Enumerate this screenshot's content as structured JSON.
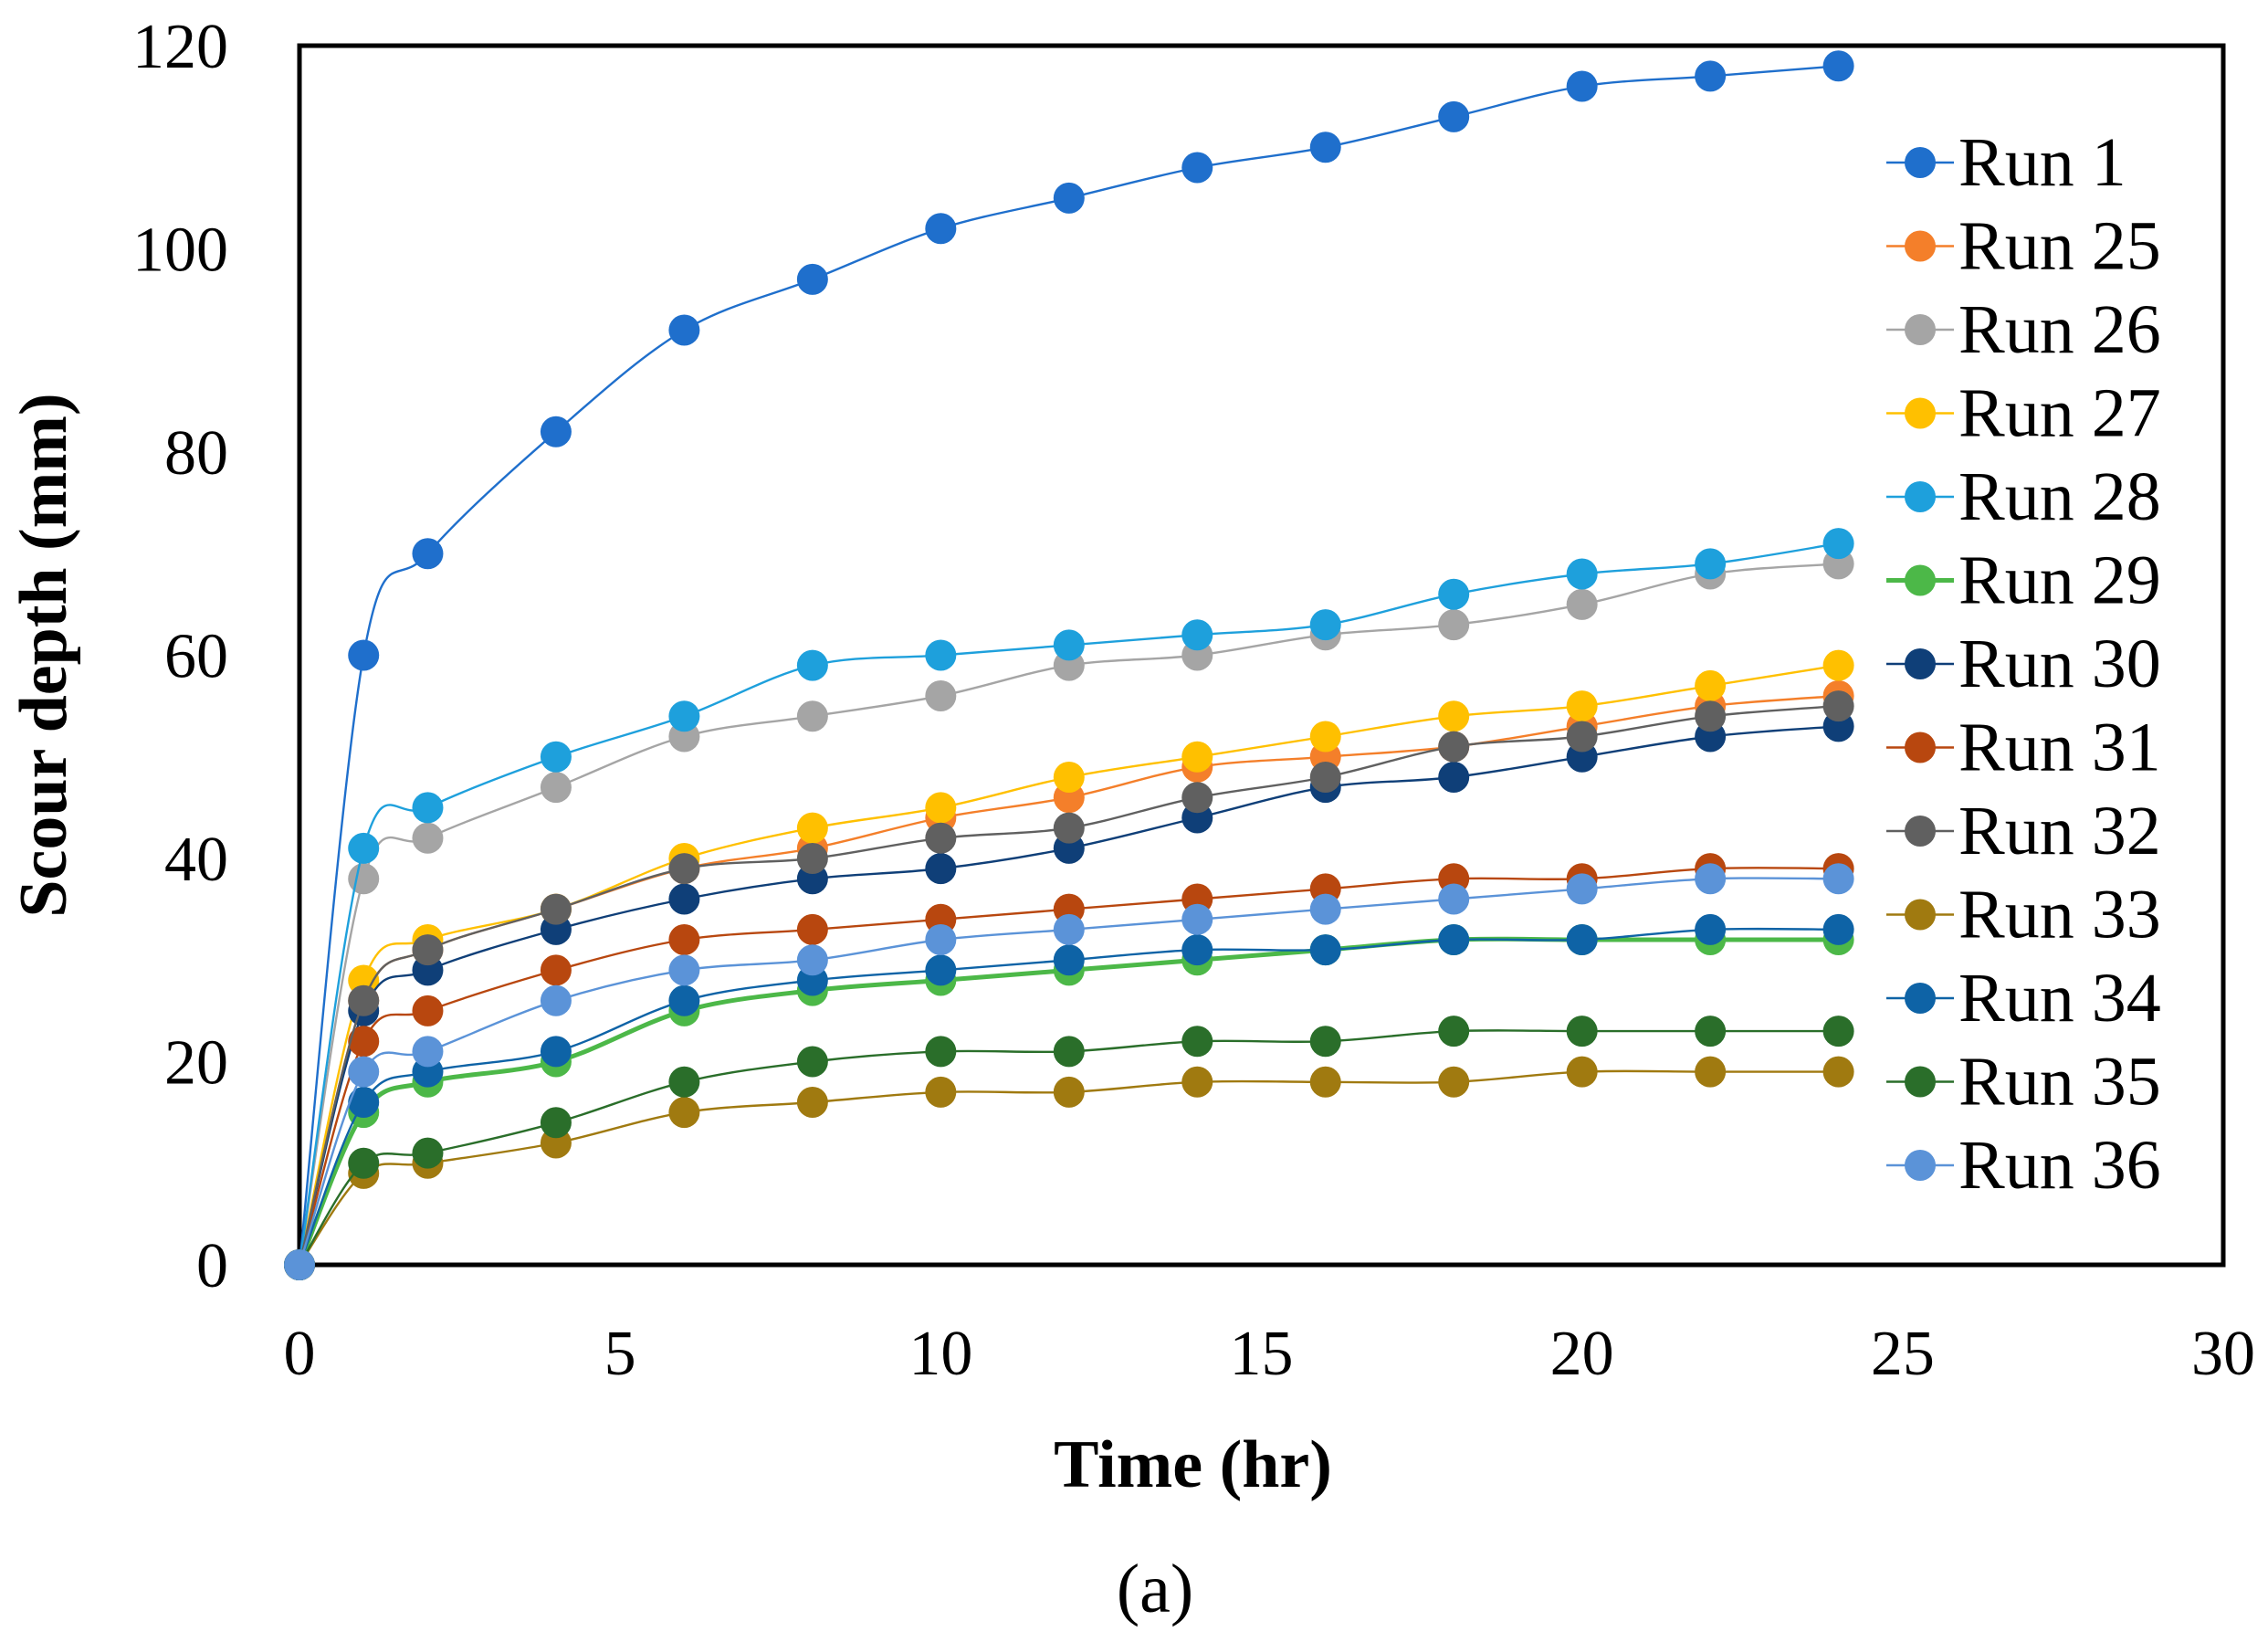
{
  "chart_data": {
    "type": "line",
    "title": "",
    "xlabel": "Time (hr)",
    "ylabel": "Scour depth (mm)",
    "panel_label": "(a)",
    "xlim": [
      0,
      30
    ],
    "ylim": [
      0,
      120
    ],
    "xticks": [
      "0",
      "5",
      "10",
      "15",
      "20",
      "25",
      "30"
    ],
    "yticks": [
      "0",
      "20",
      "40",
      "60",
      "80",
      "100",
      "120"
    ],
    "legend_position": "right",
    "x": [
      0,
      1,
      2,
      4,
      6,
      8,
      10,
      12,
      14,
      16,
      18,
      20,
      22,
      24
    ],
    "series": [
      {
        "name": "Run 1",
        "color": "#1f6fcc",
        "values": [
          0,
          60,
          70,
          82,
          92,
          97,
          102,
          105,
          108,
          110,
          113,
          116,
          117,
          118
        ]
      },
      {
        "name": "Run 25",
        "color": "#f47f2a",
        "values": [
          0,
          26,
          31,
          35,
          39,
          41,
          44,
          46,
          49,
          50,
          51,
          53,
          55,
          56
        ]
      },
      {
        "name": "Run 26",
        "color": "#a5a5a5",
        "values": [
          0,
          38,
          42,
          47,
          52,
          54,
          56,
          59,
          60,
          62,
          63,
          65,
          68,
          69
        ]
      },
      {
        "name": "Run 27",
        "color": "#ffc000",
        "values": [
          0,
          28,
          32,
          35,
          40,
          43,
          45,
          48,
          50,
          52,
          54,
          55,
          57,
          59
        ]
      },
      {
        "name": "Run 28",
        "color": "#1ea0dc",
        "values": [
          0,
          41,
          45,
          50,
          54,
          59,
          60,
          61,
          62,
          63,
          66,
          68,
          69,
          71
        ]
      },
      {
        "name": "Run 29",
        "color": "#4cb848",
        "values": [
          0,
          15,
          18,
          20,
          25,
          27,
          28,
          29,
          30,
          31,
          32,
          32,
          32,
          32
        ]
      },
      {
        "name": "Run 30",
        "color": "#0f3f78",
        "values": [
          0,
          25,
          29,
          33,
          36,
          38,
          39,
          41,
          44,
          47,
          48,
          50,
          52,
          53
        ]
      },
      {
        "name": "Run 31",
        "color": "#b8470f",
        "values": [
          0,
          22,
          25,
          29,
          32,
          33,
          34,
          35,
          36,
          37,
          38,
          38,
          39,
          39
        ]
      },
      {
        "name": "Run 32",
        "color": "#606060",
        "values": [
          0,
          26,
          31,
          35,
          39,
          40,
          42,
          43,
          46,
          48,
          51,
          52,
          54,
          55
        ]
      },
      {
        "name": "Run 33",
        "color": "#a07a10",
        "values": [
          0,
          9,
          10,
          12,
          15,
          16,
          17,
          17,
          18,
          18,
          18,
          19,
          19,
          19
        ]
      },
      {
        "name": "Run 34",
        "color": "#0e63a6",
        "values": [
          0,
          16,
          19,
          21,
          26,
          28,
          29,
          30,
          31,
          31,
          32,
          32,
          33,
          33
        ]
      },
      {
        "name": "Run 35",
        "color": "#2a6e2a",
        "values": [
          0,
          10,
          11,
          14,
          18,
          20,
          21,
          21,
          22,
          22,
          23,
          23,
          23,
          23
        ]
      },
      {
        "name": "Run 36",
        "color": "#5b93d8",
        "values": [
          0,
          19,
          21,
          26,
          29,
          30,
          32,
          33,
          34,
          35,
          36,
          37,
          38,
          38
        ]
      }
    ]
  }
}
